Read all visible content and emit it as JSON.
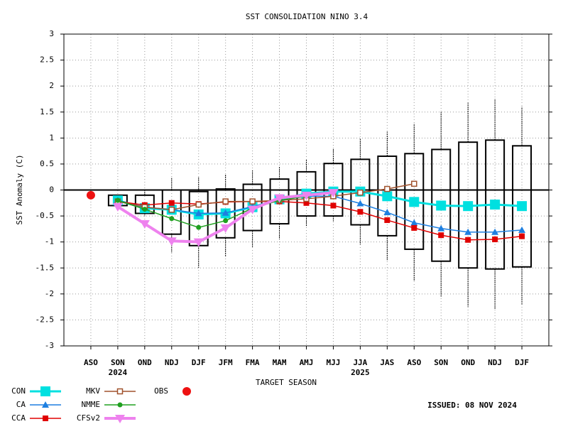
{
  "chart_data": {
    "type": "box-line",
    "title": "SST CONSOLIDATION NINO 3.4",
    "y_label": "SST Anomaly (C)",
    "x_label": "TARGET SEASON",
    "annotation": "ISSUED: 08 NOV 2024",
    "categories": [
      "ASO",
      "SON",
      "OND",
      "NDJ",
      "DJF",
      "JFM",
      "FMA",
      "MAM",
      "AMJ",
      "MJJ",
      "JJA",
      "JAS",
      "ASO",
      "SON",
      "OND",
      "NDJ",
      "DJF"
    ],
    "category_years": [
      null,
      "2024",
      null,
      null,
      null,
      null,
      null,
      null,
      null,
      null,
      "2025",
      null,
      null,
      null,
      null,
      null,
      null
    ],
    "ylim": [
      -3,
      3
    ],
    "yticks": [
      3,
      2.5,
      2,
      1.5,
      1,
      0.5,
      0,
      -0.5,
      -1,
      -1.5,
      -2,
      -2.5,
      -3
    ],
    "grid": true,
    "boxes": {
      "low": [
        null,
        -0.3,
        -0.45,
        -0.85,
        -1.07,
        -0.92,
        -0.78,
        -0.65,
        -0.5,
        -0.5,
        -0.67,
        -0.88,
        -1.14,
        -1.37,
        -1.5,
        -1.52,
        -1.48
      ],
      "high": [
        null,
        -0.1,
        -0.1,
        0.0,
        -0.03,
        0.02,
        0.11,
        0.21,
        0.35,
        0.51,
        0.59,
        0.65,
        0.7,
        0.78,
        0.92,
        0.96,
        0.85
      ],
      "whisker_low": [
        null,
        -0.3,
        -0.5,
        -1.2,
        -1.5,
        -1.28,
        -1.1,
        -0.95,
        -0.7,
        -0.6,
        -1.05,
        -1.35,
        -1.75,
        -2.05,
        -2.25,
        -2.3,
        -2.2
      ],
      "whisker_high": [
        null,
        -0.1,
        0.0,
        0.23,
        0.25,
        0.3,
        0.38,
        0.45,
        0.58,
        0.8,
        1.0,
        1.12,
        1.28,
        1.5,
        1.68,
        1.75,
        1.6
      ]
    },
    "series": [
      {
        "name": "CON",
        "color": "#00e0e0",
        "marker": "square",
        "values": [
          null,
          -0.2,
          -0.35,
          -0.38,
          -0.47,
          -0.45,
          -0.33,
          -0.18,
          -0.07,
          -0.03,
          -0.03,
          -0.12,
          -0.23,
          -0.3,
          -0.31,
          -0.28,
          -0.31
        ]
      },
      {
        "name": "CA",
        "color": "#1e7fe0",
        "marker": "triangle",
        "values": [
          null,
          -0.2,
          -0.33,
          -0.38,
          -0.45,
          -0.44,
          -0.32,
          -0.2,
          -0.12,
          -0.12,
          -0.26,
          -0.43,
          -0.63,
          -0.74,
          -0.81,
          -0.81,
          -0.77
        ]
      },
      {
        "name": "CCA",
        "color": "#e00000",
        "marker": "small-square",
        "values": [
          null,
          -0.22,
          -0.29,
          -0.25,
          -0.27,
          -0.23,
          -0.22,
          -0.22,
          -0.25,
          -0.3,
          -0.42,
          -0.58,
          -0.73,
          -0.87,
          -0.96,
          -0.95,
          -0.89
        ]
      },
      {
        "name": "MKV",
        "color": "#a0522d",
        "marker": "open-square",
        "values": [
          null,
          -0.22,
          -0.33,
          -0.38,
          -0.28,
          -0.22,
          -0.22,
          -0.2,
          -0.17,
          -0.12,
          -0.05,
          0.02,
          0.12,
          null,
          null,
          null,
          null
        ]
      },
      {
        "name": "NMME",
        "color": "#20a020",
        "marker": "star",
        "values": [
          null,
          -0.2,
          -0.37,
          -0.55,
          -0.72,
          -0.59,
          -0.35,
          -0.2,
          -0.12,
          null,
          null,
          null,
          null,
          null,
          null,
          null,
          null
        ]
      },
      {
        "name": "CFSv2",
        "color": "#ee82ee",
        "marker": "triangle-down",
        "values": [
          null,
          -0.32,
          -0.65,
          -0.98,
          -1.0,
          -0.73,
          -0.37,
          -0.15,
          -0.1,
          -0.05,
          null,
          null,
          null,
          null,
          null,
          null,
          null
        ]
      },
      {
        "name": "OBS",
        "color": "#ee1111",
        "marker": "octagon",
        "line": false,
        "values": [
          -0.1,
          null,
          null,
          null,
          null,
          null,
          null,
          null,
          null,
          null,
          null,
          null,
          null,
          null,
          null,
          null,
          null
        ]
      }
    ]
  }
}
